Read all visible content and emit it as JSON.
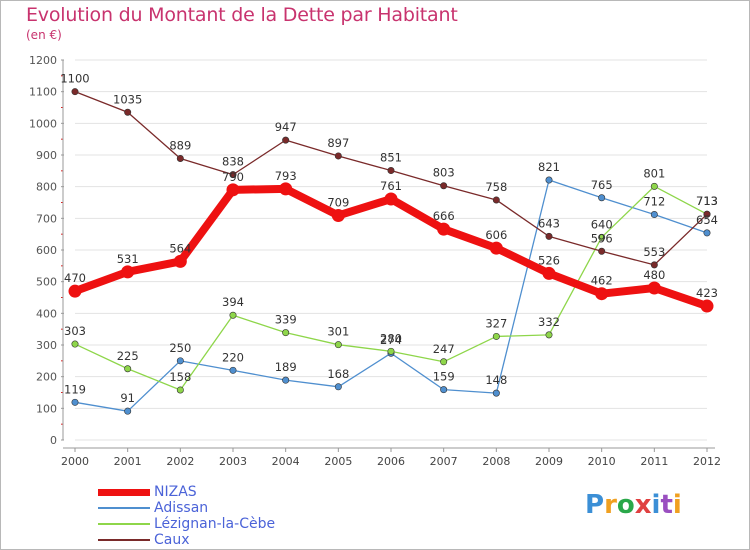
{
  "title": "Evolution du Montant de la Dette par Habitant",
  "subtitle": "(en €)",
  "logo_text": "Proxiti",
  "chart_data": {
    "type": "line",
    "title": "Evolution du Montant de la Dette par Habitant",
    "subtitle": "(en €)",
    "xlabel": "",
    "ylabel": "",
    "x": [
      "2000",
      "2001",
      "2002",
      "2003",
      "2004",
      "2005",
      "2006",
      "2007",
      "2008",
      "2009",
      "2010",
      "2011",
      "2012"
    ],
    "ylim": [
      0,
      1200
    ],
    "yticks": [
      0,
      100,
      200,
      300,
      400,
      500,
      600,
      700,
      800,
      900,
      1000,
      1100,
      1200
    ],
    "grid": "horizontal",
    "legend_position": "bottom-left",
    "series": [
      {
        "name": "NIZAS",
        "color": "#ee1111",
        "values": [
          470,
          531,
          564,
          790,
          793,
          709,
          761,
          666,
          606,
          526,
          462,
          480,
          423
        ],
        "labels": [
          "470",
          "531",
          "564",
          "790",
          "793",
          "709",
          "761",
          "666",
          "606",
          "526",
          "462",
          "480",
          "423"
        ]
      },
      {
        "name": "Adissan",
        "color": "#4f8fcf",
        "values": [
          119,
          91,
          250,
          220,
          189,
          168,
          274,
          159,
          148,
          821,
          765,
          712,
          654
        ],
        "labels": [
          "119",
          "91",
          "250",
          "220",
          "189",
          "168",
          "274",
          "159",
          "148",
          "821",
          "765",
          "712",
          "654"
        ]
      },
      {
        "name": "Lézignan-la-Cèbe",
        "color": "#8ed64a",
        "values": [
          303,
          225,
          158,
          394,
          339,
          301,
          280,
          247,
          327,
          332,
          640,
          801,
          713
        ],
        "labels": [
          "303",
          "225",
          "158",
          "394",
          "339",
          "301",
          "280",
          "247",
          "327",
          "332",
          "640",
          "801",
          "713"
        ]
      },
      {
        "name": "Caux",
        "color": "#7a2a2a",
        "values": [
          1100,
          1035,
          889,
          838,
          947,
          897,
          851,
          803,
          758,
          643,
          596,
          553,
          713
        ],
        "labels": [
          "1100",
          "1035",
          "889",
          "838",
          "947",
          "897",
          "851",
          "803",
          "758",
          "643",
          "596",
          "553",
          "713"
        ]
      }
    ]
  }
}
